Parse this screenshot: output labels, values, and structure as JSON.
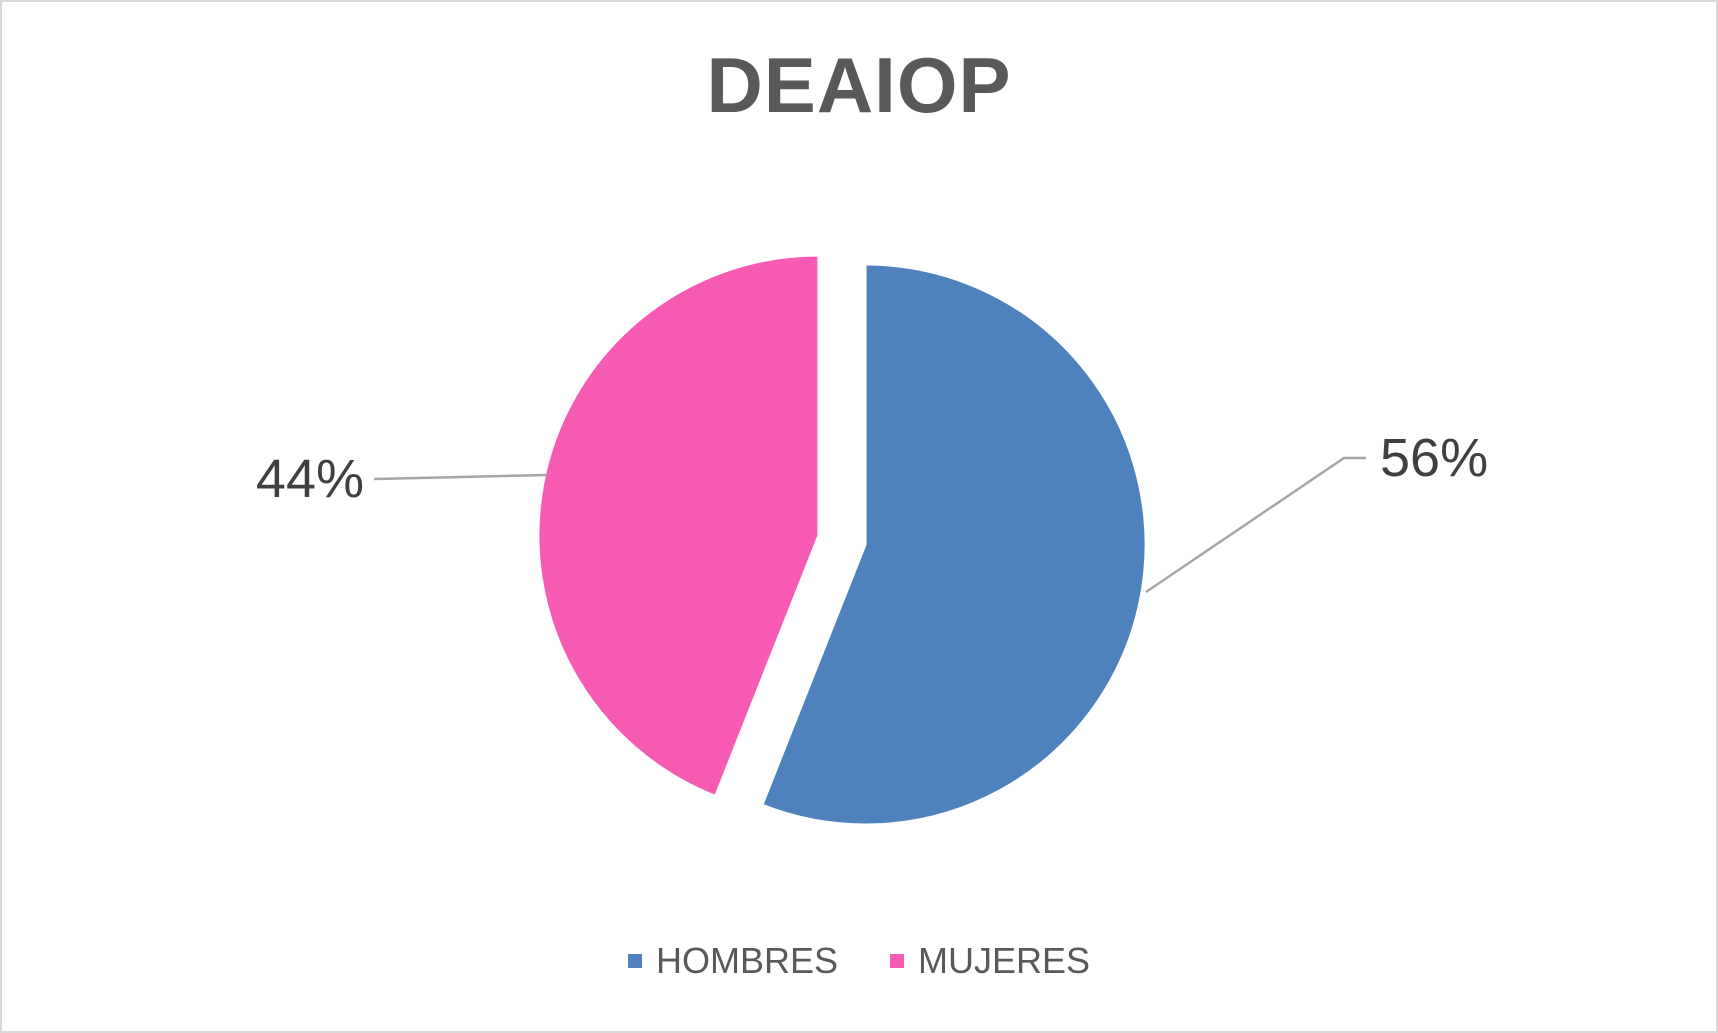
{
  "chart_data": {
    "type": "pie",
    "title": "DEAIOP",
    "categories": [
      "HOMBRES",
      "MUJERES"
    ],
    "values": [
      56,
      44
    ],
    "data_labels": [
      "56%",
      "44%"
    ],
    "colors": [
      "#4f81bd",
      "#f75bb4"
    ],
    "exploded": true,
    "legend_position": "bottom"
  },
  "legend": {
    "items": [
      {
        "label": "HOMBRES",
        "color": "#4f81bd"
      },
      {
        "label": "MUJERES",
        "color": "#f75bb4"
      }
    ]
  }
}
